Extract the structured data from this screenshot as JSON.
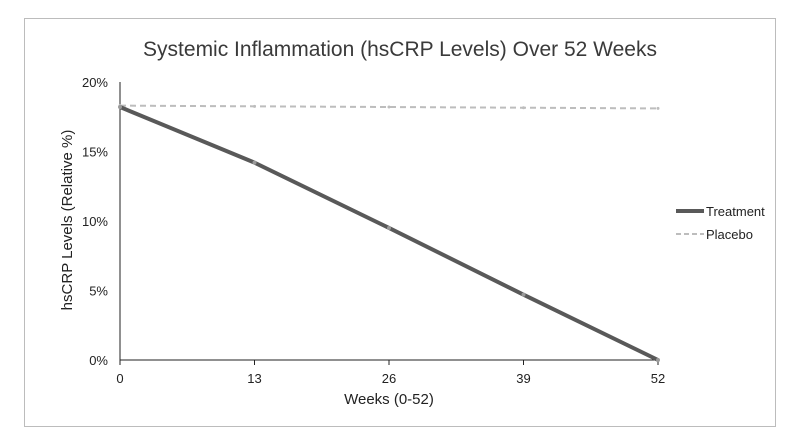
{
  "chart_data": {
    "type": "line",
    "title": "Systemic Inflammation (hsCRP Levels) Over 52 Weeks",
    "xlabel": "Weeks (0-52)",
    "ylabel": "hsCRP Levels (Relative %)",
    "x": [
      0,
      13,
      26,
      39,
      52
    ],
    "x_tick_labels": [
      "0",
      "13",
      "26",
      "39",
      "52"
    ],
    "ylim": [
      0,
      20
    ],
    "y_ticks": [
      0,
      5,
      10,
      15,
      20
    ],
    "y_tick_labels": [
      "0%",
      "5%",
      "10%",
      "15%",
      "20%"
    ],
    "grid": false,
    "legend_position": "right",
    "series": [
      {
        "name": "Treatment",
        "values": [
          18.2,
          14.2,
          9.5,
          4.7,
          0.0
        ],
        "color": "#595959",
        "style": "solid"
      },
      {
        "name": "Placebo",
        "values": [
          18.3,
          18.25,
          18.2,
          18.15,
          18.1
        ],
        "color": "#bdbdbd",
        "style": "dashed"
      }
    ]
  }
}
